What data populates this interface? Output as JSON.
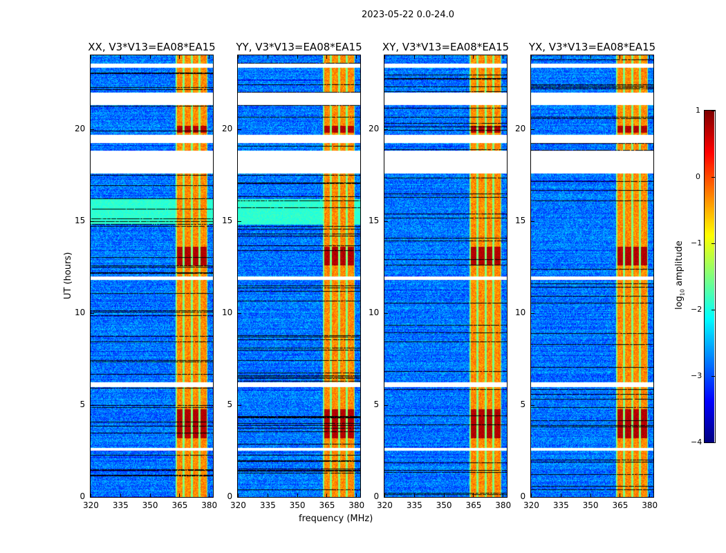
{
  "chart_data": {
    "type": "heatmap",
    "title": "2023-05-22 0.0-24.0",
    "xlabel": "frequency (MHz)",
    "ylabel": "UT (hours)",
    "xlim": [
      320,
      382
    ],
    "ylim": [
      0,
      24
    ],
    "xticks": [
      320,
      335,
      350,
      365,
      380
    ],
    "yticks": [
      0,
      5,
      10,
      15,
      20
    ],
    "colormap": "jet",
    "colorbar": {
      "label_prefix": "log",
      "label_sub": "10",
      "label_suffix": " amplitude",
      "range": [
        -4,
        1
      ],
      "ticks": [
        1,
        0,
        -1,
        -2,
        -3,
        -4
      ],
      "tick_labels": [
        "1",
        "0",
        "−1",
        "−2",
        "−3",
        "−4"
      ]
    },
    "panels": [
      {
        "name": "XX",
        "title": "XX, V3*V13=EA08*EA15"
      },
      {
        "name": "YY",
        "title": "YY, V3*V13=EA08*EA15"
      },
      {
        "name": "XY",
        "title": "XY, V3*V13=EA08*EA15"
      },
      {
        "name": "YX",
        "title": "YX, V3*V13=EA08*EA15"
      }
    ],
    "rfi_band_mhz": [
      363,
      379
    ],
    "rfi_subbands_mhz": [
      [
        363.5,
        366.5
      ],
      [
        367.5,
        370.5
      ],
      [
        371.5,
        374.5
      ],
      [
        375.5,
        378.5
      ]
    ],
    "flagged_time_ranges_hours": [
      [
        23.35,
        23.55
      ],
      [
        21.3,
        22.0
      ],
      [
        19.25,
        19.7
      ],
      [
        17.6,
        18.85
      ],
      [
        11.8,
        12.0
      ],
      [
        6.0,
        6.25
      ],
      [
        2.55,
        2.7
      ]
    ],
    "background_log10_amplitude": -2.8,
    "rfi_log10_amplitude": -0.3,
    "peak_rfi_time_ranges_hours": [
      [
        3.2,
        4.8
      ],
      [
        19.8,
        20.2
      ],
      [
        12.6,
        13.6
      ]
    ]
  }
}
